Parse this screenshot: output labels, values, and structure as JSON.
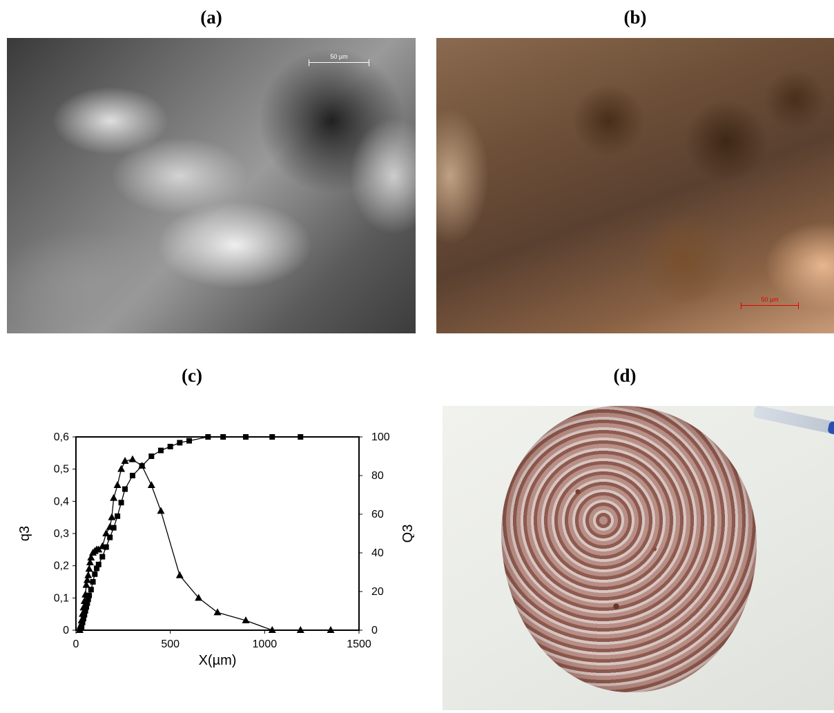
{
  "panels": {
    "a": {
      "label": "(a)",
      "scale_text": "50 µm"
    },
    "b": {
      "label": "(b)",
      "scale_text": "50 µm"
    },
    "c": {
      "label": "(c)"
    },
    "d": {
      "label": "(d)"
    }
  },
  "chart_data": {
    "type": "line",
    "xlabel": "X(µm)",
    "ylabel_left": "q3",
    "ylabel_right": "Q3",
    "xlim": [
      0,
      1500
    ],
    "ylim_left": [
      0,
      0.6
    ],
    "ylim_right": [
      0,
      100
    ],
    "xticks": [
      0,
      500,
      1000,
      1500
    ],
    "yticks_left": [
      "0",
      "0,1",
      "0,2",
      "0,3",
      "0,4",
      "0,5",
      "0,6"
    ],
    "yticks_right": [
      "0",
      "20",
      "40",
      "60",
      "80",
      "100"
    ],
    "grid": false,
    "series": [
      {
        "marker": "triangle",
        "axis": "left",
        "x": [
          20,
          25,
          30,
          35,
          40,
          45,
          50,
          55,
          60,
          65,
          70,
          75,
          80,
          90,
          100,
          110,
          120,
          140,
          160,
          180,
          190,
          200,
          220,
          240,
          260,
          300,
          350,
          400,
          450,
          550,
          650,
          750,
          900,
          1040,
          1190,
          1350
        ],
        "y": [
          0,
          0.01,
          0.03,
          0.05,
          0.07,
          0.09,
          0.11,
          0.14,
          0.155,
          0.17,
          0.19,
          0.21,
          0.225,
          0.24,
          0.245,
          0.25,
          0.25,
          0.26,
          0.3,
          0.32,
          0.35,
          0.41,
          0.45,
          0.5,
          0.525,
          0.53,
          0.51,
          0.45,
          0.37,
          0.17,
          0.1,
          0.055,
          0.03,
          0,
          0,
          0
        ]
      },
      {
        "marker": "square",
        "axis": "right",
        "x": [
          20,
          25,
          30,
          35,
          40,
          45,
          50,
          55,
          60,
          65,
          70,
          80,
          90,
          100,
          110,
          120,
          140,
          160,
          180,
          200,
          220,
          240,
          260,
          300,
          350,
          400,
          450,
          500,
          550,
          600,
          700,
          780,
          900,
          1040,
          1190
        ],
        "y": [
          0,
          1,
          2,
          4,
          6,
          8,
          10,
          12,
          14,
          16,
          18,
          21,
          25,
          29,
          32,
          34,
          38,
          43,
          48,
          53,
          59,
          66,
          73,
          80,
          85,
          90,
          93,
          95,
          97,
          98,
          100,
          100,
          100,
          100,
          100
        ]
      }
    ]
  }
}
